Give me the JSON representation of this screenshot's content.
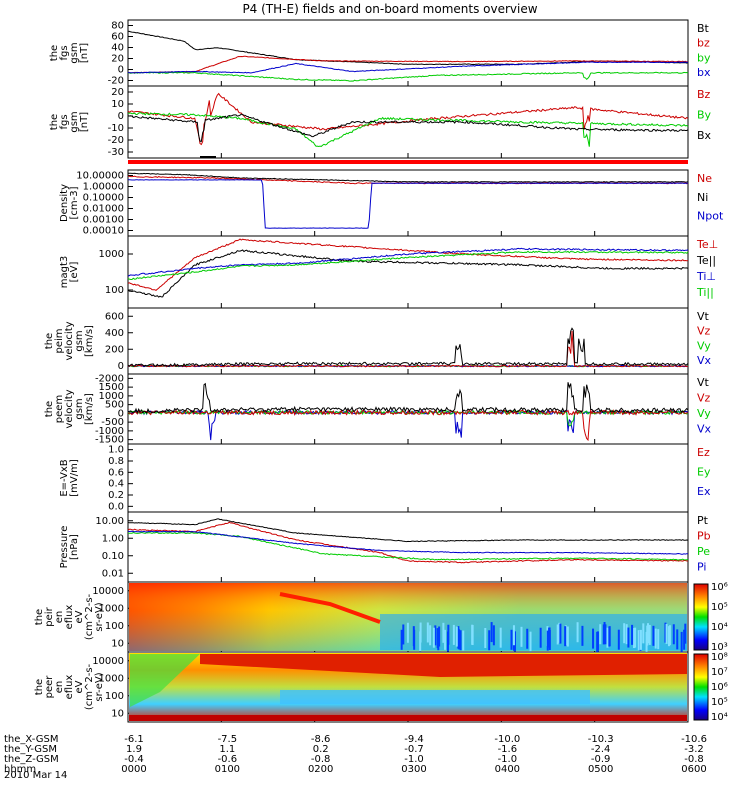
{
  "title": "P4 (TH-E) fields and on-board moments overview",
  "chart_data": {
    "type": "line",
    "x_time_ticks": [
      "0000",
      "0100",
      "0200",
      "0300",
      "0400",
      "0500",
      "0600"
    ],
    "panels": [
      {
        "id": "fgs_gsm",
        "ylabel": [
          "the",
          "fgs",
          "gsm",
          "[nT]"
        ],
        "yticks": [
          "-20",
          "0",
          "20",
          "40",
          "60",
          "80"
        ],
        "ylim": [
          -20,
          85
        ],
        "legend": [
          {
            "name": "Bt",
            "color": "#000000"
          },
          {
            "name": "bz",
            "color": "#cc0000"
          },
          {
            "name": "by",
            "color": "#00cc00"
          },
          {
            "name": "bx",
            "color": "#0000cc"
          }
        ]
      },
      {
        "id": "fgs_gsm_comp",
        "ylabel": [
          "the",
          "fgs",
          "gsm",
          "[nT]"
        ],
        "yticks": [
          "-30",
          "-20",
          "-10",
          "0",
          "10",
          "20"
        ],
        "ylim": [
          -35,
          20
        ],
        "legend": [
          {
            "name": "Bz",
            "color": "#cc0000"
          },
          {
            "name": "By",
            "color": "#00cc00"
          },
          {
            "name": "Bx",
            "color": "#000000"
          }
        ]
      },
      {
        "id": "density",
        "ylabel": [
          "Density",
          "[cm-3]"
        ],
        "yticks": [
          "0.00010",
          "0.00100",
          "0.01000",
          "0.10000",
          "1.00000",
          "10.00000"
        ],
        "ylim": [
          5e-05,
          15
        ],
        "legend": [
          {
            "name": "Ne",
            "color": "#cc0000"
          },
          {
            "name": "Ni",
            "color": "#000000"
          },
          {
            "name": "Npot",
            "color": "#0000cc"
          }
        ]
      },
      {
        "id": "temperature",
        "ylabel": [
          "magt3",
          "[eV]"
        ],
        "yticks": [
          "100",
          "1000"
        ],
        "ylim": [
          100,
          20000
        ],
        "legend": [
          {
            "name": "Te⊥",
            "color": "#cc0000"
          },
          {
            "name": "Te||",
            "color": "#000000"
          },
          {
            "name": "Ti⊥",
            "color": "#0000cc"
          },
          {
            "name": "Ti||",
            "color": "#00cc00"
          }
        ]
      },
      {
        "id": "peim_velocity",
        "ylabel": [
          "the",
          "peim",
          "velocity",
          "gsm",
          "[km/s]"
        ],
        "yticks": [
          "0",
          "200",
          "400",
          "600"
        ],
        "ylim": [
          -80,
          650
        ],
        "legend": [
          {
            "name": "Vt",
            "color": "#000000"
          },
          {
            "name": "Vz",
            "color": "#cc0000"
          },
          {
            "name": "Vy",
            "color": "#00cc00"
          },
          {
            "name": "Vx",
            "color": "#0000cc"
          }
        ]
      },
      {
        "id": "peem_velocity",
        "ylabel": [
          "the",
          "peem",
          "velocity",
          "gsm",
          "[km/s]"
        ],
        "yticks": [
          "-1500",
          "-1000",
          "-500",
          "0",
          "500",
          "1000",
          "1500",
          "-2000"
        ],
        "ylim": [
          -1600,
          2000
        ],
        "legend": [
          {
            "name": "Vt",
            "color": "#000000"
          },
          {
            "name": "Vz",
            "color": "#cc0000"
          },
          {
            "name": "Vy",
            "color": "#00cc00"
          },
          {
            "name": "Vx",
            "color": "#0000cc"
          }
        ]
      },
      {
        "id": "e_vxb",
        "ylabel": [
          "E=-VxB",
          "[mV/m]"
        ],
        "yticks": [
          "0.0",
          "0.2",
          "0.4",
          "0.6",
          "0.8",
          "1.0"
        ],
        "ylim": [
          0,
          1
        ],
        "legend": [
          {
            "name": "Ez",
            "color": "#cc0000"
          },
          {
            "name": "Ey",
            "color": "#00cc00"
          },
          {
            "name": "Ex",
            "color": "#0000cc"
          }
        ]
      },
      {
        "id": "pressure",
        "ylabel": [
          "Pressure",
          "[nPa]"
        ],
        "yticks": [
          "0.01",
          "0.10",
          "1.00",
          "10.00"
        ],
        "ylim": [
          0.01,
          10
        ],
        "legend": [
          {
            "name": "Pt",
            "color": "#000000"
          },
          {
            "name": "Pb",
            "color": "#cc0000"
          },
          {
            "name": "Pe",
            "color": "#00cc00"
          },
          {
            "name": "Pi",
            "color": "#0000cc"
          }
        ]
      },
      {
        "id": "ion_spectrogram",
        "ylabel": [
          "the",
          "peir",
          "en",
          "eflux",
          "eV",
          "(cm^2-s-",
          "sr-eV)"
        ],
        "yticks": [
          "10",
          "100",
          "1000",
          "10000"
        ],
        "colorbar": [
          "10³",
          "10⁴",
          "10⁵",
          "10⁶"
        ]
      },
      {
        "id": "electron_spectrogram",
        "ylabel": [
          "the",
          "peer",
          "en",
          "eflux",
          "eV",
          "(cm^2-s-",
          "sr-eV)"
        ],
        "yticks": [
          "10",
          "100",
          "1000",
          "10000"
        ],
        "colorbar": [
          "10⁴",
          "10⁵",
          "10⁶",
          "10⁷",
          "10⁸"
        ]
      }
    ],
    "ephemeris": [
      {
        "label": "the_X-GSM",
        "values": [
          "-6.1",
          "-7.5",
          "-8.6",
          "-9.4",
          "-10.0",
          "-10.3",
          "-10.6"
        ]
      },
      {
        "label": "the_Y-GSM",
        "values": [
          "1.9",
          "1.1",
          "0.2",
          "-0.7",
          "-1.6",
          "-2.4",
          "-3.2"
        ]
      },
      {
        "label": "the_Z-GSM",
        "values": [
          "-0.4",
          "-0.6",
          "-0.8",
          "-1.0",
          "-1.0",
          "-0.9",
          "-0.8"
        ]
      },
      {
        "label": "hhmm",
        "values": [
          "0000",
          "0100",
          "0200",
          "0300",
          "0400",
          "0500",
          "0600"
        ]
      }
    ],
    "date": "2010 Mar 14"
  }
}
